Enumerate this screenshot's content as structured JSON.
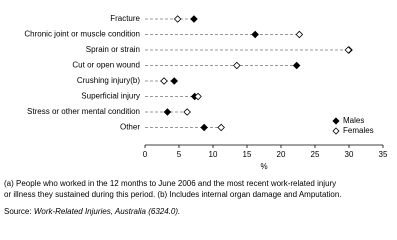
{
  "chart_data": {
    "type": "dot",
    "categories": [
      "Fracture",
      "Chronic joint or muscle condition",
      "Sprain or strain",
      "Cut or open wound",
      "Crushing injury(b)",
      "Superficial injury",
      "Stress or other mental condition",
      "Other"
    ],
    "series": [
      {
        "name": "Males",
        "color": "#000000",
        "values": [
          7.2,
          16.2,
          30.0,
          22.3,
          4.3,
          7.3,
          3.3,
          8.7
        ]
      },
      {
        "name": "Females",
        "color": "#ffffff",
        "values": [
          4.8,
          22.7,
          29.9,
          13.5,
          2.8,
          7.8,
          6.2,
          11.2
        ]
      }
    ],
    "xlabel": "%",
    "xlim": [
      0,
      35
    ],
    "xticks": [
      0,
      5,
      10,
      15,
      20,
      25,
      30,
      35
    ],
    "footnotes": [
      "(a) People who worked in the 12 months to June 2006 and the most recent work-related injury",
      "or illness they sustained during this period.  (b) Includes internal organ damage and Amputation."
    ],
    "source_label": "Source:",
    "source": "Work-Related Injuries, Australia (6324.0)."
  }
}
